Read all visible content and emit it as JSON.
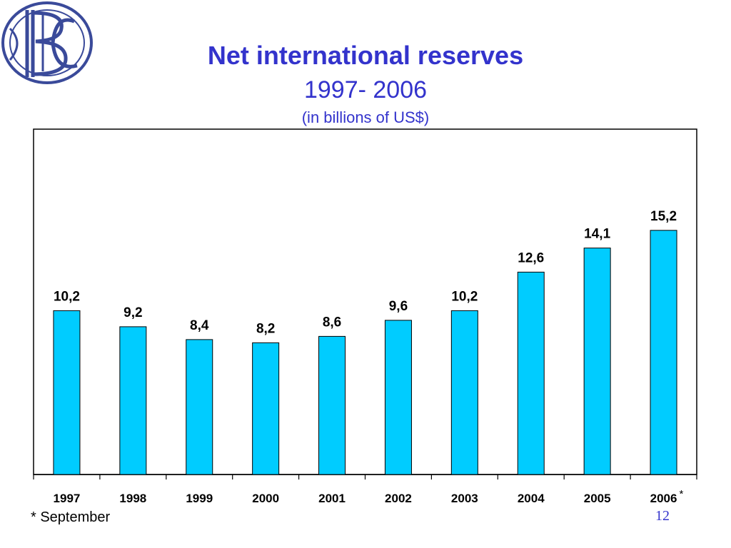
{
  "slide": {
    "title": "Net international reserves",
    "years": "1997- 2006",
    "unit": "(in billions of US$)",
    "footnote": "* September",
    "page_number": "12",
    "logo_name": "bank-monogram-logo"
  },
  "colors": {
    "title": "#3333cc",
    "bar_fill": "#00ccff",
    "bar_stroke": "#000000",
    "logo": "#3a4a9a"
  },
  "chart_data": {
    "type": "bar",
    "title": "Net international reserves",
    "subtitle": "1997- 2006 (in billions of US$)",
    "xlabel": "",
    "ylabel": "",
    "categories": [
      "1997",
      "1998",
      "1999",
      "2000",
      "2001",
      "2002",
      "2003",
      "2004",
      "2005",
      "2006"
    ],
    "category_marks": [
      "",
      "",
      "",
      "",
      "",
      "",
      "",
      "",
      "",
      "*"
    ],
    "values": [
      10.2,
      9.2,
      8.4,
      8.2,
      8.6,
      9.6,
      10.2,
      12.6,
      14.1,
      15.2
    ],
    "value_labels": [
      "10,2",
      "9,2",
      "8,4",
      "8,2",
      "8,6",
      "9,6",
      "10,2",
      "12,6",
      "14,1",
      "15,2"
    ],
    "ylim": [
      0,
      21.5
    ],
    "grid": false,
    "legend": "none"
  }
}
